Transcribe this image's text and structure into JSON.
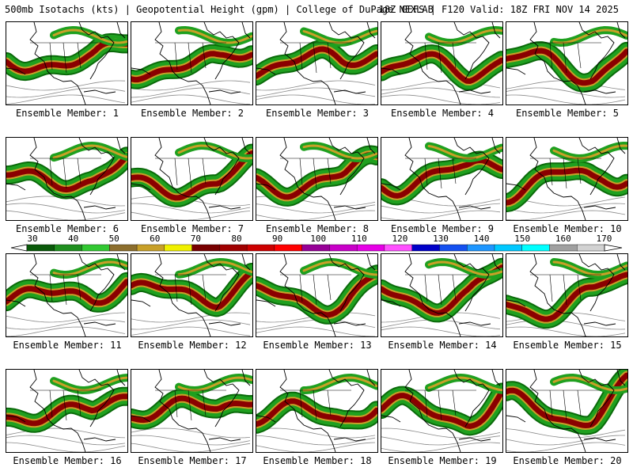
{
  "header": {
    "left": "500mb Isotachs (kts) | Geopotential Height (gpm) | College of DuPage NEXLAB",
    "right": "18Z GEFS | F120 Valid: 18Z FRI NOV 14 2025"
  },
  "colorbar": {
    "ticks": [
      "30",
      "40",
      "50",
      "60",
      "70",
      "80",
      "90",
      "100",
      "110",
      "120",
      "130",
      "140",
      "150",
      "160",
      "170"
    ],
    "colors": [
      "#0a5a0a",
      "#1f8f1f",
      "#32c832",
      "#8c6e2d",
      "#c8a028",
      "#f0f000",
      "#780000",
      "#a00000",
      "#cd0000",
      "#ff0000",
      "#960096",
      "#c800c8",
      "#e600e6",
      "#ff50ff",
      "#0000c8",
      "#1450f0",
      "#1e96ff",
      "#00c8ff",
      "#00ffff",
      "#a0a0a0",
      "#d2d2d2"
    ]
  },
  "panels": [
    {
      "label": "Ensemble Member: 1"
    },
    {
      "label": "Ensemble Member: 2"
    },
    {
      "label": "Ensemble Member: 3"
    },
    {
      "label": "Ensemble Member: 4"
    },
    {
      "label": "Ensemble Member: 5"
    },
    {
      "label": "Ensemble Member: 6"
    },
    {
      "label": "Ensemble Member: 7"
    },
    {
      "label": "Ensemble Member: 8"
    },
    {
      "label": "Ensemble Member: 9"
    },
    {
      "label": "Ensemble Member: 10"
    },
    {
      "label": "Ensemble Member: 11"
    },
    {
      "label": "Ensemble Member: 12"
    },
    {
      "label": "Ensemble Member: 13"
    },
    {
      "label": "Ensemble Member: 14"
    },
    {
      "label": "Ensemble Member: 15"
    },
    {
      "label": "Ensemble Member: 16"
    },
    {
      "label": "Ensemble Member: 17"
    },
    {
      "label": "Ensemble Member: 18"
    },
    {
      "label": "Ensemble Member: 19"
    },
    {
      "label": "Ensemble Member: 20"
    }
  ],
  "styles": {
    "jet_core": "#8b0000",
    "jet_mid": "#c8a028",
    "jet_outer": "#1fa01f",
    "jet_edge": "#0a6a0a",
    "height_contour": "#8a8a8a",
    "coastline": "#000000"
  }
}
